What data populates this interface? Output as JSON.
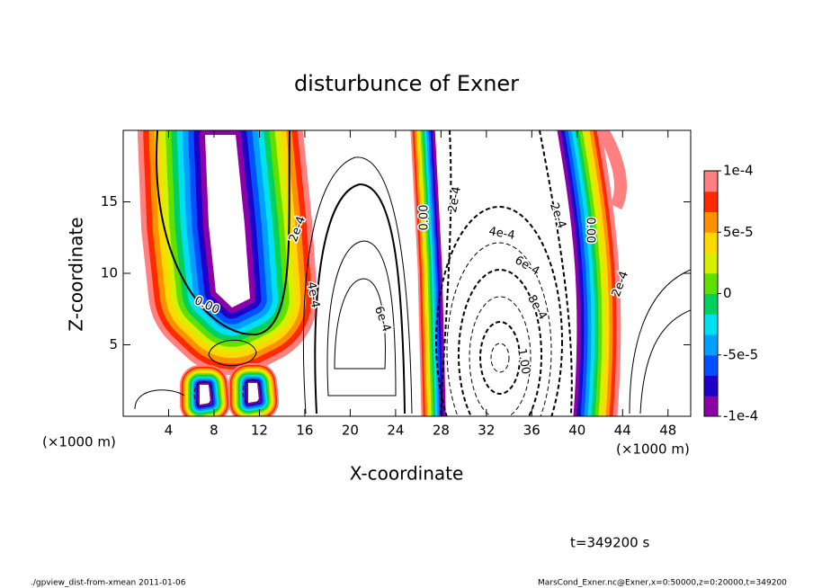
{
  "chart_data": {
    "type": "contour",
    "title": "disturbunce of Exner",
    "x_label": "X-coordinate",
    "y_label": "Z-coordinate",
    "x_unit": "(×1000 m)",
    "xlim": [
      0,
      50
    ],
    "xticks": [
      4,
      8,
      12,
      16,
      20,
      24,
      28,
      32,
      36,
      40,
      44,
      48
    ],
    "ylim": [
      0,
      20
    ],
    "yticks": [
      5,
      10,
      15
    ],
    "colorbar": {
      "clim": [
        -0.0001,
        0.0001
      ],
      "ticks": [
        {
          "value": 0.0001,
          "label": "1e-4"
        },
        {
          "value": 5e-05,
          "label": "5e-5"
        },
        0,
        {
          "value": -5e-05,
          "label": "-5e-5"
        },
        {
          "value": -0.0001,
          "label": "-1e-4"
        }
      ],
      "colors": [
        "#8c00a8",
        "#1e00c8",
        "#0050ff",
        "#00a0ff",
        "#00e0f0",
        "#00d060",
        "#60e000",
        "#d8f000",
        "#ffd800",
        "#ff9000",
        "#ff2a00",
        "#ff8080"
      ]
    },
    "contour_labels": [
      "0.00",
      "2e-4",
      "4e-4",
      "6e-4",
      "0.00",
      "2e-4",
      "4e-4",
      "6e-4",
      "8e-4",
      "1.00",
      "2e-4",
      "0.00",
      "2e-4"
    ],
    "time_label": "t=349200 s"
  },
  "footer": {
    "left": "./gpview_dist-from-xmean  2011-01-06",
    "right": "MarsCond_Exner.nc@Exner,x=0:50000,z=0:20000,t=349200"
  }
}
